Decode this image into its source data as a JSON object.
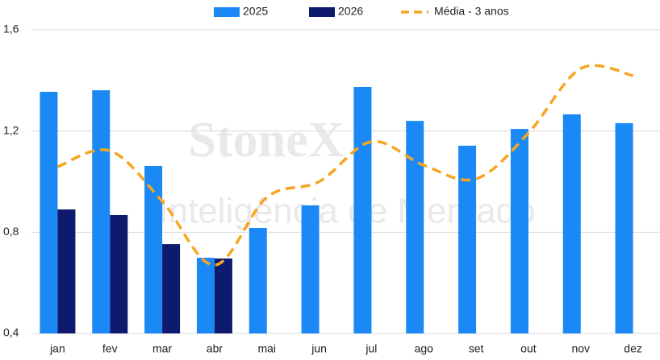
{
  "chart_data": {
    "type": "bar",
    "watermark": [
      "StoneX",
      "Inteligência de Mercado"
    ],
    "categories": [
      "jan",
      "fev",
      "mar",
      "abr",
      "mai",
      "jun",
      "jul",
      "ago",
      "set",
      "out",
      "nov",
      "dez"
    ],
    "series": [
      {
        "name": "2025",
        "color": "#1a88f5",
        "type": "bar",
        "values": [
          1.355,
          1.361,
          1.062,
          0.699,
          0.817,
          0.906,
          1.374,
          1.24,
          1.142,
          1.208,
          1.266,
          1.231
        ]
      },
      {
        "name": "2026",
        "color": "#0d1a6e",
        "type": "bar",
        "values": [
          0.89,
          0.868,
          0.753,
          0.696,
          null,
          null,
          null,
          null,
          null,
          null,
          null,
          null
        ]
      },
      {
        "name": "Média - 3 anos",
        "color": "#f5a623",
        "type": "line",
        "dashed": true,
        "values": [
          1.059,
          1.122,
          0.922,
          0.67,
          0.938,
          1.0,
          1.158,
          1.065,
          1.011,
          1.192,
          1.447,
          1.419
        ]
      }
    ],
    "ylim": [
      0.4,
      1.6
    ],
    "yticks": [
      {
        "value": 0.4,
        "label": "0,4"
      },
      {
        "value": 0.8,
        "label": "0,8"
      },
      {
        "value": 1.2,
        "label": "1,2"
      },
      {
        "value": 1.6,
        "label": "1,6"
      }
    ],
    "grid": true,
    "legend": "top"
  }
}
